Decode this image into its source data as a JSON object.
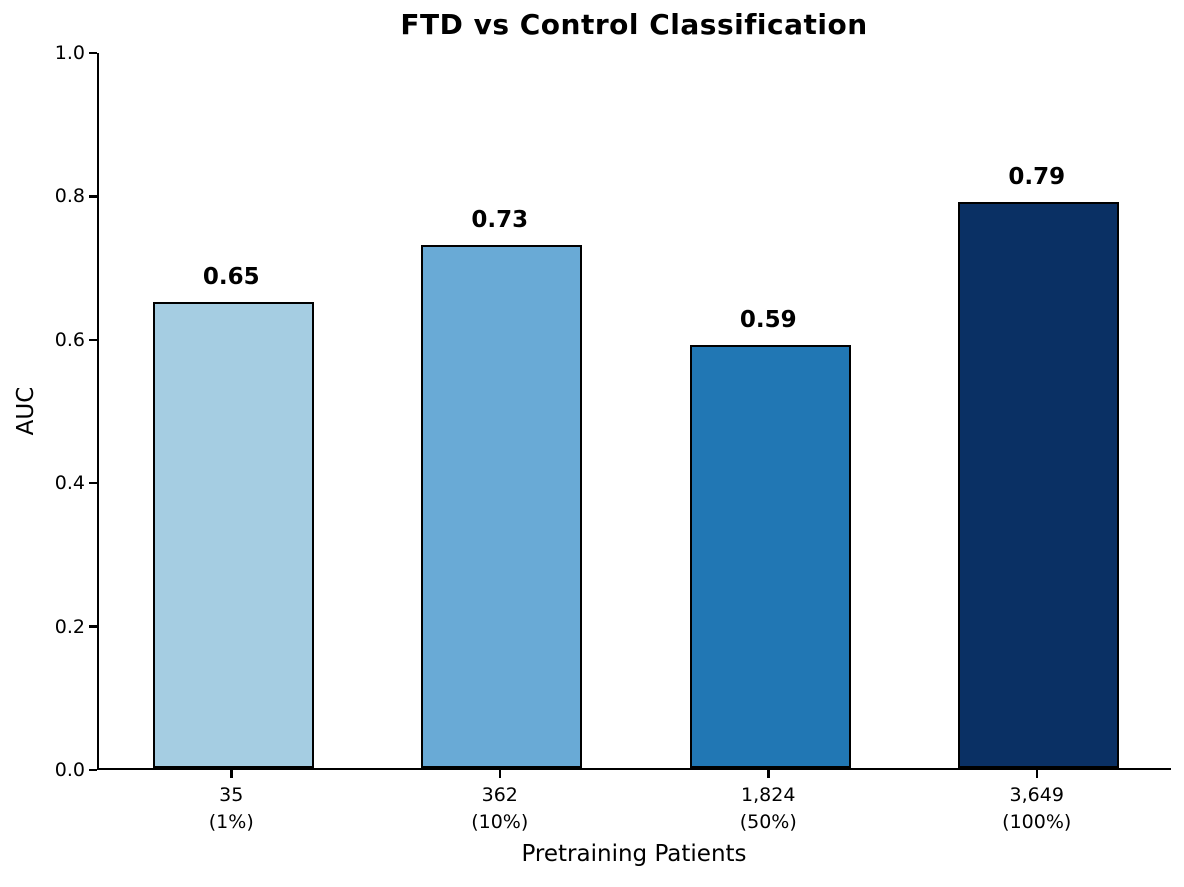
{
  "figure": {
    "background_color": "#ffffff",
    "text_color": "#000000"
  },
  "chart_data": {
    "type": "bar",
    "title": "FTD vs Control Classification",
    "xlabel": "Pretraining Patients",
    "ylabel": "AUC",
    "categories": [
      {
        "count": "35",
        "percent": "(1%)"
      },
      {
        "count": "362",
        "percent": "(10%)"
      },
      {
        "count": "1,824",
        "percent": "(50%)"
      },
      {
        "count": "3,649",
        "percent": "(100%)"
      }
    ],
    "values": [
      0.65,
      0.73,
      0.59,
      0.79
    ],
    "bar_value_labels": [
      "0.65",
      "0.73",
      "0.59",
      "0.79"
    ],
    "bar_colors": [
      "#a5cde2",
      "#69aad6",
      "#2177b4",
      "#0a3064"
    ],
    "bar_edge_color": "#000000",
    "ylim": [
      0.0,
      1.0
    ],
    "ytick_labels": [
      "0.0",
      "0.2",
      "0.4",
      "0.6",
      "0.8",
      "1.0"
    ],
    "grid": false,
    "legend_position": "none"
  }
}
